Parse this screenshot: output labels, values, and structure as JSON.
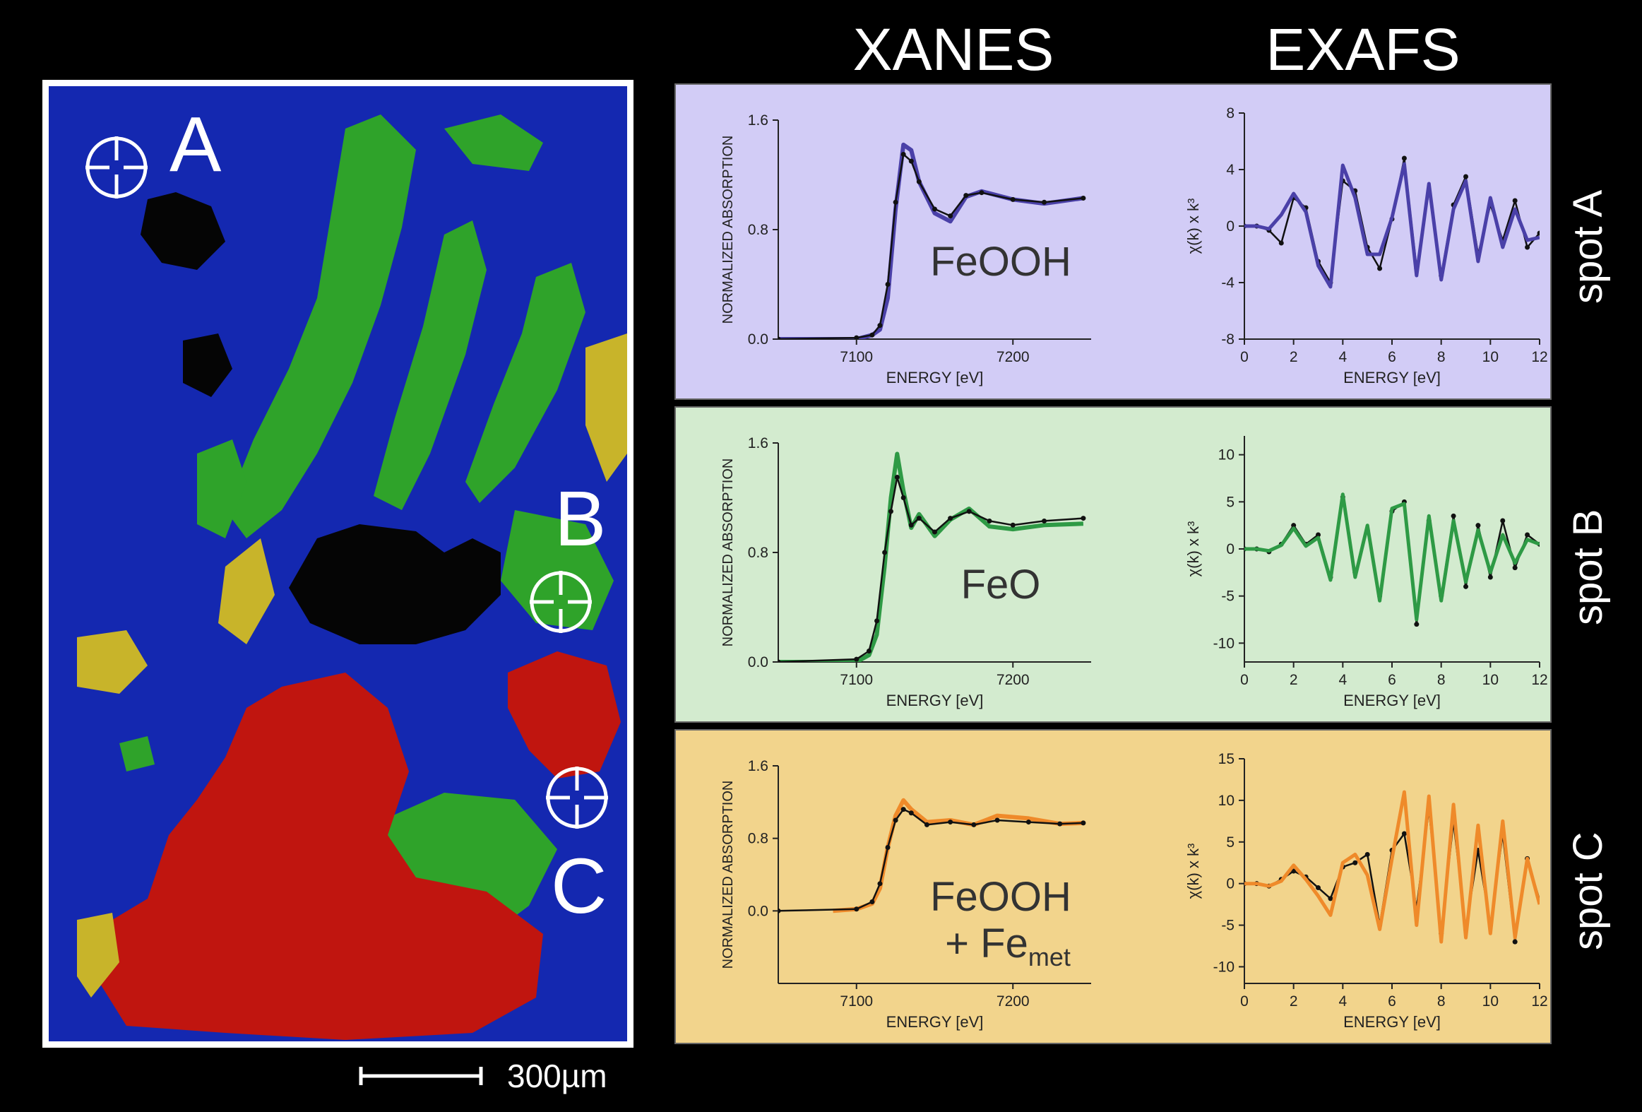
{
  "headers": {
    "xanes": "XANES",
    "exafs": "EXAFS"
  },
  "map": {
    "spots": [
      {
        "letter": "A"
      },
      {
        "letter": "B"
      },
      {
        "letter": "C"
      }
    ],
    "scale_label": "300µm",
    "colors": {
      "blue": "#1428b0",
      "green": "#2fa32a",
      "red": "#c0150f",
      "yellow": "#c8b42a",
      "black": "#050505"
    }
  },
  "panels": [
    {
      "spot_label": "spot A",
      "bg": "#d2ccf6",
      "fit_color": "#4a40a8",
      "compound": "FeOOH",
      "compound_sub": ""
    },
    {
      "spot_label": "spot B",
      "bg": "#d3ebcf",
      "fit_color": "#2e9a45",
      "compound": "FeO",
      "compound_sub": ""
    },
    {
      "spot_label": "spot C",
      "bg": "#f2d48c",
      "fit_color": "#ef8a2a",
      "compound": "FeOOH",
      "compound_line2": "+ Fe",
      "compound_sub": "met"
    }
  ],
  "chart_data": [
    {
      "type": "line",
      "panel": "spot A",
      "measurement": "XANES",
      "xlabel": "ENERGY [eV]",
      "ylabel": "NORMALIZED ABSORPTION",
      "xlim": [
        7050,
        7250
      ],
      "ylim": [
        0.0,
        1.6
      ],
      "xticks": [
        7100,
        7200
      ],
      "yticks": [
        0.0,
        0.8,
        1.6
      ],
      "ytick_labels": [
        "0.0",
        "0.8",
        "1.6"
      ],
      "series": [
        {
          "role": "data",
          "x": [
            7050,
            7100,
            7110,
            7115,
            7120,
            7125,
            7130,
            7135,
            7140,
            7150,
            7160,
            7170,
            7180,
            7200,
            7220,
            7245
          ],
          "y": [
            0.0,
            0.01,
            0.03,
            0.1,
            0.4,
            1.0,
            1.35,
            1.3,
            1.15,
            0.95,
            0.9,
            1.05,
            1.07,
            1.02,
            1.0,
            1.03
          ]
        },
        {
          "role": "fit",
          "x": [
            7050,
            7100,
            7110,
            7115,
            7120,
            7125,
            7130,
            7135,
            7140,
            7150,
            7160,
            7170,
            7180,
            7200,
            7220,
            7245
          ],
          "y": [
            0.0,
            0.0,
            0.03,
            0.07,
            0.3,
            0.95,
            1.42,
            1.38,
            1.15,
            0.92,
            0.86,
            1.04,
            1.08,
            1.02,
            0.99,
            1.03
          ]
        }
      ]
    },
    {
      "type": "line",
      "panel": "spot A",
      "measurement": "EXAFS",
      "xlabel": "ENERGY [eV]",
      "ylabel": "χ(k) x k³",
      "xlim": [
        0,
        12
      ],
      "ylim": [
        -8,
        8
      ],
      "xticks": [
        0,
        2,
        4,
        6,
        8,
        10,
        12
      ],
      "yticks": [
        -8,
        -4,
        0,
        4,
        8
      ],
      "series": [
        {
          "role": "data",
          "x": [
            0,
            0.5,
            1,
            1.5,
            2,
            2.5,
            3,
            3.5,
            4,
            4.5,
            5,
            5.5,
            6,
            6.5,
            7,
            7.5,
            8,
            8.5,
            9,
            9.5,
            10,
            10.5,
            11,
            11.5,
            12
          ],
          "y": [
            0,
            0,
            -0.3,
            -1.2,
            2.0,
            1.3,
            -2.5,
            -4.0,
            3.2,
            2.5,
            -1.5,
            -3.0,
            0.5,
            4.8,
            -3.0,
            2.5,
            -3.5,
            1.5,
            3.5,
            -2.0,
            1.5,
            -1.0,
            1.8,
            -1.5,
            -0.5
          ]
        },
        {
          "role": "fit",
          "x": [
            0,
            0.5,
            1,
            1.5,
            2,
            2.5,
            3,
            3.5,
            4,
            4.5,
            5,
            5.5,
            6,
            6.5,
            7,
            7.5,
            8,
            8.5,
            9,
            9.5,
            10,
            10.5,
            11,
            11.5,
            12
          ],
          "y": [
            0,
            0,
            -0.2,
            0.8,
            2.3,
            1.0,
            -2.8,
            -4.3,
            4.3,
            2.0,
            -2.0,
            -2.0,
            0.6,
            4.4,
            -3.5,
            3.0,
            -3.8,
            1.2,
            3.2,
            -2.5,
            2.0,
            -1.5,
            1.2,
            -1.0,
            -0.8
          ]
        }
      ]
    },
    {
      "type": "line",
      "panel": "spot B",
      "measurement": "XANES",
      "xlabel": "ENERGY [eV]",
      "ylabel": "NORMALIZED ABSORPTION",
      "xlim": [
        7050,
        7250
      ],
      "ylim": [
        0.0,
        1.6
      ],
      "xticks": [
        7100,
        7200
      ],
      "yticks": [
        0.0,
        0.8,
        1.6
      ],
      "ytick_labels": [
        "0.0",
        "0.8",
        "1.6"
      ],
      "series": [
        {
          "role": "data",
          "x": [
            7050,
            7100,
            7108,
            7113,
            7118,
            7122,
            7126,
            7130,
            7135,
            7140,
            7150,
            7160,
            7172,
            7185,
            7200,
            7220,
            7245
          ],
          "y": [
            0.0,
            0.02,
            0.08,
            0.3,
            0.8,
            1.1,
            1.35,
            1.2,
            1.0,
            1.05,
            0.95,
            1.05,
            1.1,
            1.03,
            1.0,
            1.03,
            1.05
          ]
        },
        {
          "role": "fit",
          "x": [
            7050,
            7100,
            7108,
            7113,
            7118,
            7122,
            7126,
            7130,
            7135,
            7140,
            7150,
            7160,
            7172,
            7185,
            7200,
            7220,
            7245
          ],
          "y": [
            0.0,
            0.0,
            0.05,
            0.2,
            0.7,
            1.2,
            1.52,
            1.25,
            0.98,
            1.08,
            0.92,
            1.04,
            1.12,
            0.99,
            0.97,
            1.0,
            1.01
          ]
        }
      ]
    },
    {
      "type": "line",
      "panel": "spot B",
      "measurement": "EXAFS",
      "xlabel": "ENERGY [eV]",
      "ylabel": "χ(k) x k³",
      "xlim": [
        0,
        12
      ],
      "ylim": [
        -12,
        12
      ],
      "xticks": [
        0,
        2,
        4,
        6,
        8,
        10,
        12
      ],
      "yticks": [
        -10,
        -5,
        0,
        5,
        10
      ],
      "series": [
        {
          "role": "data",
          "x": [
            0,
            0.5,
            1,
            1.5,
            2,
            2.5,
            3,
            3.5,
            4,
            4.5,
            5,
            5.5,
            6,
            6.5,
            7,
            7.5,
            8,
            8.5,
            9,
            9.5,
            10,
            10.5,
            11,
            11.5,
            12
          ],
          "y": [
            0,
            0,
            -0.3,
            0.5,
            2.5,
            0.5,
            1.5,
            -3.0,
            5.5,
            -2.5,
            2.0,
            -5.0,
            4.0,
            5.0,
            -8.0,
            3.0,
            -5.0,
            3.5,
            -4.0,
            2.5,
            -3.0,
            3.0,
            -2.0,
            1.5,
            0.5
          ]
        },
        {
          "role": "fit",
          "x": [
            0,
            0.5,
            1,
            1.5,
            2,
            2.5,
            3,
            3.5,
            4,
            4.5,
            5,
            5.5,
            6,
            6.5,
            7,
            7.5,
            8,
            8.5,
            9,
            9.5,
            10,
            10.5,
            11,
            11.5,
            12
          ],
          "y": [
            0,
            0,
            -0.2,
            0.4,
            2.2,
            0.3,
            1.2,
            -3.3,
            5.8,
            -3.0,
            2.5,
            -5.5,
            4.3,
            4.8,
            -7.5,
            3.5,
            -5.5,
            3.0,
            -3.5,
            2.0,
            -2.5,
            1.5,
            -1.5,
            1.0,
            0.5
          ]
        }
      ]
    },
    {
      "type": "line",
      "panel": "spot C",
      "measurement": "XANES",
      "xlabel": "ENERGY [eV]",
      "ylabel": "NORMALIZED ABSORPTION",
      "xlim": [
        7050,
        7250
      ],
      "ylim": [
        -0.8,
        1.6
      ],
      "xticks": [
        7100,
        7200
      ],
      "yticks": [
        0.0,
        0.8,
        1.6
      ],
      "ytick_labels": [
        "0.0",
        "0.8",
        "1.6"
      ],
      "series": [
        {
          "role": "data",
          "x": [
            7050,
            7100,
            7110,
            7115,
            7120,
            7125,
            7130,
            7135,
            7145,
            7160,
            7175,
            7190,
            7210,
            7230,
            7245
          ],
          "y": [
            0.0,
            0.02,
            0.1,
            0.3,
            0.7,
            1.0,
            1.12,
            1.08,
            0.95,
            0.98,
            0.95,
            1.0,
            0.98,
            0.96,
            0.97
          ]
        },
        {
          "role": "fit",
          "x": [
            7085,
            7100,
            7110,
            7115,
            7120,
            7125,
            7130,
            7135,
            7145,
            7160,
            7175,
            7190,
            7210,
            7230,
            7245
          ],
          "y": [
            0.0,
            0.02,
            0.08,
            0.25,
            0.7,
            1.05,
            1.22,
            1.12,
            0.98,
            1.0,
            0.95,
            1.05,
            1.02,
            0.96,
            0.97
          ]
        }
      ]
    },
    {
      "type": "line",
      "panel": "spot C",
      "measurement": "EXAFS",
      "xlabel": "ENERGY [eV]",
      "ylabel": "χ(k) x k³",
      "xlim": [
        0,
        12
      ],
      "ylim": [
        -12,
        15
      ],
      "xticks": [
        0,
        2,
        4,
        6,
        8,
        10,
        12
      ],
      "yticks": [
        -10,
        -5,
        0,
        5,
        10,
        15
      ],
      "series": [
        {
          "role": "data",
          "x": [
            0,
            0.5,
            1,
            1.5,
            2,
            2.5,
            3,
            3.5,
            4,
            4.5,
            5,
            5.5,
            6,
            6.5,
            7,
            7.5,
            8,
            8.5,
            9,
            9.5,
            10,
            10.5,
            11,
            11.5,
            12
          ],
          "y": [
            0,
            0,
            -0.3,
            0.5,
            1.5,
            0.8,
            -0.5,
            -1.8,
            2.0,
            2.5,
            3.5,
            -5.0,
            4.0,
            6.0,
            -3.0,
            9.0,
            -6.0,
            7.5,
            -5.5,
            4.0,
            -5.0,
            6.0,
            -7.0,
            3.0,
            -2.0
          ]
        },
        {
          "role": "fit",
          "x": [
            0,
            0.5,
            1,
            1.5,
            2,
            2.5,
            3,
            3.5,
            4,
            4.5,
            5,
            5.5,
            6,
            6.5,
            7,
            7.5,
            8,
            8.5,
            9,
            9.5,
            10,
            10.5,
            11,
            11.5,
            12
          ],
          "y": [
            0,
            0,
            -0.3,
            0.3,
            2.2,
            0.5,
            -1.5,
            -3.8,
            2.5,
            3.5,
            1.0,
            -5.5,
            3.0,
            11.0,
            -5.0,
            10.5,
            -7.0,
            9.5,
            -6.5,
            7.0,
            -6.0,
            7.5,
            -6.5,
            3.0,
            -2.5
          ]
        }
      ]
    }
  ]
}
